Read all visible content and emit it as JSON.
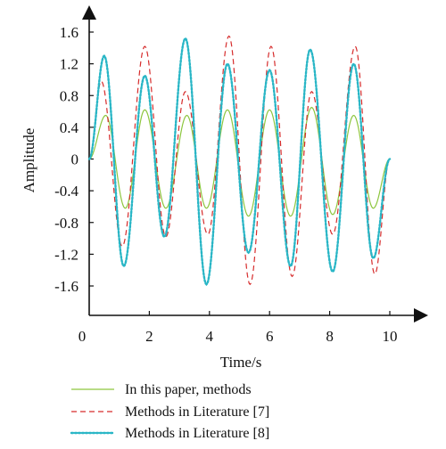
{
  "chart_data": {
    "type": "line",
    "xlabel": "Time/s",
    "ylabel": "Amplitude",
    "xlim": [
      0,
      10
    ],
    "ylim": [
      -1.6,
      1.6
    ],
    "x_ticks": [
      "0",
      "2",
      "4",
      "6",
      "8",
      "10"
    ],
    "y_ticks": [
      "1.6",
      "1.2",
      "0.8",
      "0.4",
      "0",
      "-0.4",
      "-0.8",
      "-1.2",
      "-1.6"
    ],
    "grid": false,
    "legend_position": "bottom",
    "series": [
      {
        "name": "In this paper, methods",
        "color": "#8dc63f",
        "style": "solid",
        "x": [
          0,
          0.55,
          1.2,
          1.85,
          2.55,
          3.25,
          3.9,
          4.6,
          5.3,
          6.0,
          6.7,
          7.4,
          8.1,
          8.8,
          9.45,
          10
        ],
        "y": [
          0,
          0.55,
          -0.62,
          0.62,
          -0.62,
          0.55,
          -0.62,
          0.62,
          -0.72,
          0.62,
          -0.72,
          0.65,
          -0.7,
          0.55,
          -0.62,
          0
        ]
      },
      {
        "name": "Methods in Literature [7]",
        "color": "#d62c2c",
        "style": "dashed",
        "x": [
          0,
          0.4,
          1.1,
          1.85,
          2.55,
          3.2,
          3.95,
          4.65,
          5.35,
          6.05,
          6.75,
          7.4,
          8.1,
          8.85,
          9.5,
          10
        ],
        "y": [
          0,
          0.98,
          -1.1,
          1.42,
          -0.98,
          0.85,
          -0.95,
          1.55,
          -1.58,
          1.42,
          -1.48,
          0.85,
          -0.95,
          1.42,
          -1.45,
          0
        ]
      },
      {
        "name": "Methods in Literature [8]",
        "color": "#29b6c6",
        "style": "dotted",
        "x": [
          0,
          0.5,
          1.15,
          1.85,
          2.5,
          3.2,
          3.9,
          4.6,
          5.3,
          6.0,
          6.7,
          7.35,
          8.1,
          8.8,
          9.45,
          10
        ],
        "y": [
          0,
          1.3,
          -1.35,
          1.05,
          -0.98,
          1.52,
          -1.58,
          1.2,
          -1.18,
          1.12,
          -1.35,
          1.38,
          -1.42,
          1.2,
          -1.25,
          0
        ]
      }
    ]
  }
}
